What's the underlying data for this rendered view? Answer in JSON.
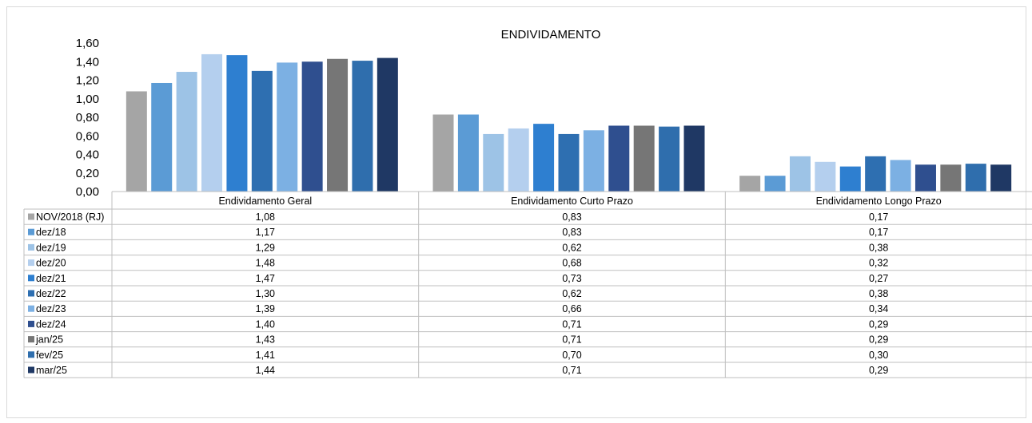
{
  "chart_data": {
    "type": "bar",
    "title": "ENDIVIDAMENTO",
    "categories": [
      "Endividamento Geral",
      "Endividamento Curto Prazo",
      "Endividamento Longo Prazo"
    ],
    "ylim": [
      0,
      1.6
    ],
    "yticks": [
      "0,00",
      "0,20",
      "0,40",
      "0,60",
      "0,80",
      "1,00",
      "1,20",
      "1,40",
      "1,60"
    ],
    "grid": false,
    "legend_position": "table-below",
    "series": [
      {
        "name": "NOV/2018 (RJ)",
        "color": "#a5a5a5",
        "values": [
          1.08,
          0.83,
          0.17
        ],
        "labels": [
          "1,08",
          "0,83",
          "0,17"
        ]
      },
      {
        "name": "dez/18",
        "color": "#5b9bd5",
        "values": [
          1.17,
          0.83,
          0.17
        ],
        "labels": [
          "1,17",
          "0,83",
          "0,17"
        ]
      },
      {
        "name": "dez/19",
        "color": "#9dc3e6",
        "values": [
          1.29,
          0.62,
          0.38
        ],
        "labels": [
          "1,29",
          "0,62",
          "0,38"
        ]
      },
      {
        "name": "dez/20",
        "color": "#b4cfee",
        "values": [
          1.48,
          0.68,
          0.32
        ],
        "labels": [
          "1,48",
          "0,68",
          "0,32"
        ]
      },
      {
        "name": "dez/21",
        "color": "#2e7fd0",
        "values": [
          1.47,
          0.73,
          0.27
        ],
        "labels": [
          "1,47",
          "0,73",
          "0,27"
        ]
      },
      {
        "name": "dez/22",
        "color": "#2e6fb1",
        "values": [
          1.3,
          0.62,
          0.38
        ],
        "labels": [
          "1,30",
          "0,62",
          "0,38"
        ]
      },
      {
        "name": "dez/23",
        "color": "#7cb0e3",
        "values": [
          1.39,
          0.66,
          0.34
        ],
        "labels": [
          "1,39",
          "0,66",
          "0,34"
        ]
      },
      {
        "name": "dez/24",
        "color": "#2f4f8f",
        "values": [
          1.4,
          0.71,
          0.29
        ],
        "labels": [
          "1,40",
          "0,71",
          "0,29"
        ]
      },
      {
        "name": "jan/25",
        "color": "#767676",
        "values": [
          1.43,
          0.71,
          0.29
        ],
        "labels": [
          "1,43",
          "0,71",
          "0,29"
        ]
      },
      {
        "name": "fev/25",
        "color": "#2f6ead",
        "values": [
          1.41,
          0.7,
          0.3
        ],
        "labels": [
          "1,41",
          "0,70",
          "0,30"
        ]
      },
      {
        "name": "mar/25",
        "color": "#1f3864",
        "values": [
          1.44,
          0.71,
          0.29
        ],
        "labels": [
          "1,44",
          "0,71",
          "0,29"
        ]
      }
    ]
  }
}
